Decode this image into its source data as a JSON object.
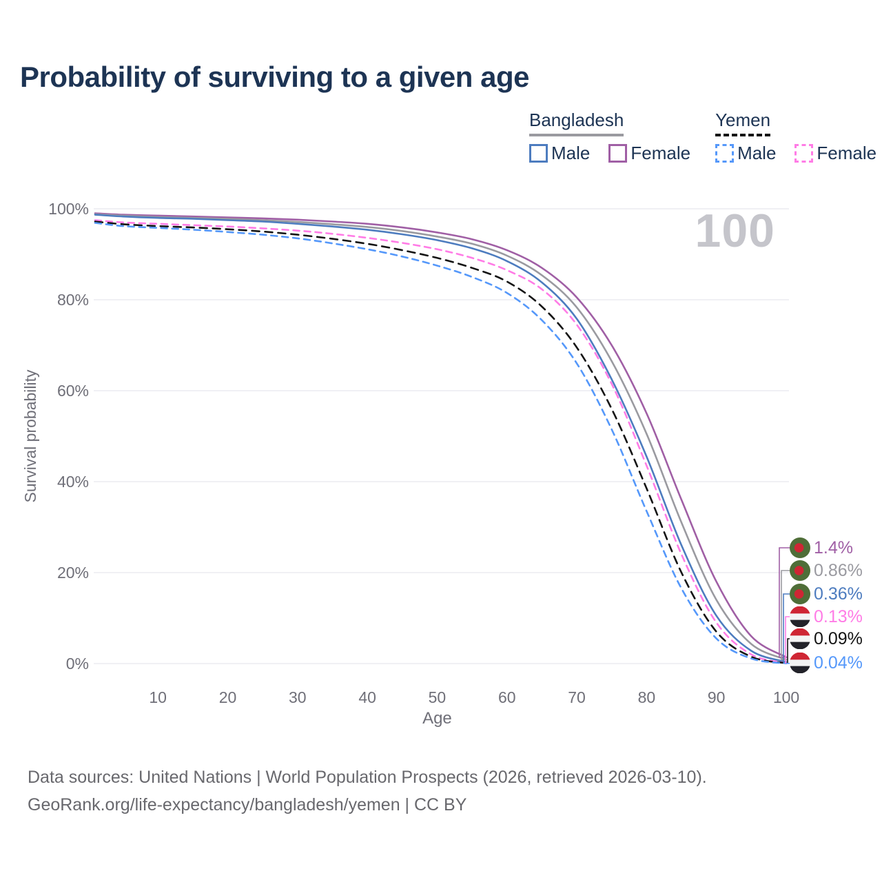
{
  "header": {
    "title": "Probability of surviving to a given age"
  },
  "legend": {
    "groups": [
      {
        "country": "Bangladesh",
        "line_style": "solid",
        "line_color": "#9a9aa0",
        "items": [
          {
            "label": "Male",
            "color": "#4d7cbf"
          },
          {
            "label": "Female",
            "color": "#a05fa5"
          }
        ]
      },
      {
        "country": "Yemen",
        "line_style": "dashed",
        "line_color": "#141414",
        "items": [
          {
            "label": "Male",
            "color": "#5598fa"
          },
          {
            "label": "Female",
            "color": "#ff7ce6"
          }
        ]
      }
    ]
  },
  "watermark": "100",
  "chart_data": {
    "type": "line",
    "title": "Probability of surviving to a given age",
    "xlabel": "Age",
    "ylabel": "Survival probability",
    "xlim": [
      1,
      100
    ],
    "ylim": [
      0,
      100
    ],
    "x_ticks": [
      10,
      20,
      30,
      40,
      50,
      60,
      70,
      80,
      90,
      100
    ],
    "y_tick_labels": [
      "0%",
      "20%",
      "40%",
      "60%",
      "80%",
      "100%"
    ],
    "grid": "horizontal-only",
    "legend_position": "top-right",
    "x": [
      1,
      5,
      10,
      15,
      20,
      25,
      30,
      35,
      40,
      45,
      50,
      55,
      60,
      65,
      70,
      75,
      80,
      85,
      90,
      95,
      100
    ],
    "series": [
      {
        "name": "Bangladesh Female",
        "country": "Bangladesh",
        "sex": "Female",
        "flag": "bangladesh",
        "color": "#a05fa5",
        "line": "solid",
        "end_label": "1.4%",
        "values": [
          99.0,
          98.7,
          98.5,
          98.3,
          98.1,
          97.9,
          97.6,
          97.2,
          96.7,
          95.9,
          94.8,
          93.3,
          90.9,
          87.0,
          80.5,
          70.0,
          55.0,
          36.0,
          18.0,
          6.0,
          1.4
        ]
      },
      {
        "name": "Bangladesh (both sexes)",
        "country": "Bangladesh",
        "sex": "Both",
        "flag": "bangladesh",
        "color": "#9a9aa0",
        "line": "solid",
        "end_label": "0.86%",
        "values": [
          98.8,
          98.5,
          98.2,
          98.0,
          97.8,
          97.5,
          97.1,
          96.6,
          96.0,
          95.1,
          93.9,
          92.3,
          89.7,
          85.4,
          78.3,
          66.5,
          50.5,
          31.0,
          14.0,
          4.3,
          0.86
        ]
      },
      {
        "name": "Bangladesh Male",
        "country": "Bangladesh",
        "sex": "Male",
        "flag": "bangladesh",
        "color": "#4d7cbf",
        "line": "solid",
        "end_label": "0.36%",
        "values": [
          98.7,
          98.3,
          98.0,
          97.8,
          97.5,
          97.2,
          96.7,
          96.1,
          95.4,
          94.4,
          93.1,
          91.3,
          88.5,
          83.8,
          75.8,
          62.5,
          45.5,
          26.0,
          10.5,
          2.8,
          0.36
        ]
      },
      {
        "name": "Yemen Female",
        "country": "Yemen",
        "sex": "Female",
        "flag": "yemen",
        "color": "#ff7ce6",
        "line": "dashed",
        "end_label": "0.13%",
        "values": [
          97.5,
          97.0,
          96.7,
          96.4,
          96.1,
          95.7,
          95.2,
          94.5,
          93.6,
          92.5,
          91.1,
          89.2,
          86.5,
          82.3,
          74.5,
          61.5,
          43.5,
          24.0,
          9.0,
          2.0,
          0.13
        ]
      },
      {
        "name": "Yemen (both sexes)",
        "country": "Yemen",
        "sex": "Both",
        "flag": "yemen",
        "color": "#141414",
        "line": "dashed",
        "end_label": "0.09%",
        "values": [
          97.2,
          96.6,
          96.2,
          95.9,
          95.5,
          95.0,
          94.3,
          93.4,
          92.3,
          90.9,
          89.2,
          87.0,
          84.0,
          78.5,
          69.5,
          56.0,
          38.5,
          20.0,
          7.0,
          1.5,
          0.09
        ]
      },
      {
        "name": "Yemen Male",
        "country": "Yemen",
        "sex": "Male",
        "flag": "yemen",
        "color": "#5598fa",
        "line": "dashed",
        "end_label": "0.04%",
        "values": [
          96.9,
          96.2,
          95.8,
          95.4,
          94.9,
          94.3,
          93.5,
          92.4,
          91.1,
          89.5,
          87.5,
          85.0,
          81.5,
          75.5,
          66.0,
          51.5,
          33.5,
          16.5,
          5.5,
          1.1,
          0.04
        ]
      }
    ],
    "flag_colors": {
      "bangladesh": {
        "field": "#4f6e38",
        "disc": "#cf2634"
      },
      "yemen": {
        "top": "#cf2634",
        "middle": "#f4f4f4",
        "bottom": "#23232a"
      }
    },
    "style": {
      "grid_color": "#ebebf0",
      "axis_text_color": "#6f6f78",
      "watermark_color": "#c5c5cb",
      "title_color": "#1d3454"
    }
  },
  "footer": {
    "line1": "Data sources: United Nations | World Population Prospects (2026, retrieved 2026-03-10).",
    "line2": "GeoRank.org/life-expectancy/bangladesh/yemen | CC BY"
  }
}
